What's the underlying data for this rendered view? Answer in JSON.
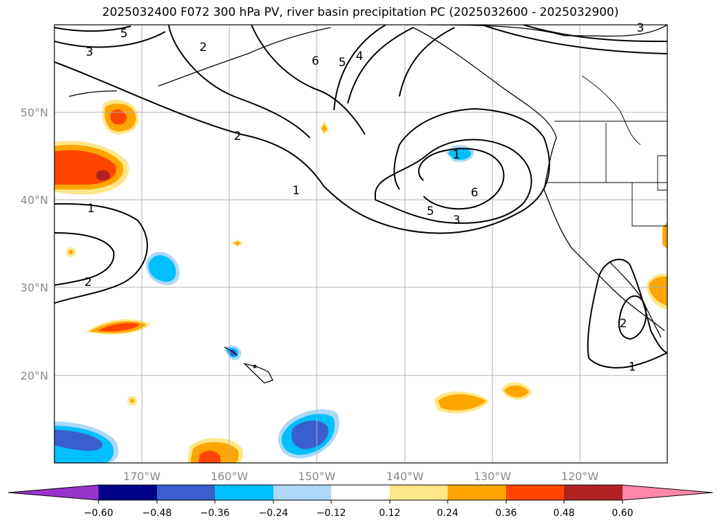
{
  "title": "2025032400 F072 300 hPa PV, river basin precipitation PC (2025032600 - 2025032900)",
  "map": {
    "lon_range": [
      -180,
      -110
    ],
    "lat_range": [
      10,
      60
    ],
    "lon_ticks": [
      {
        "value": -170,
        "label": "170°W"
      },
      {
        "value": -160,
        "label": "160°W"
      },
      {
        "value": -150,
        "label": "150°W"
      },
      {
        "value": -140,
        "label": "140°W"
      },
      {
        "value": -130,
        "label": "130°W"
      },
      {
        "value": -120,
        "label": "120°W"
      }
    ],
    "lat_ticks": [
      {
        "value": 20,
        "label": "20°N"
      },
      {
        "value": 30,
        "label": "30°N"
      },
      {
        "value": 40,
        "label": "40°N"
      },
      {
        "value": 50,
        "label": "50°N"
      }
    ],
    "gridlines": true,
    "pv_contour_labels": [
      "5",
      "2",
      "3",
      "6",
      "5",
      "4",
      "2",
      "1",
      "1",
      "2",
      "1",
      "6",
      "5",
      "3",
      "2",
      "1",
      "3"
    ]
  },
  "colorbar": {
    "ticks": [
      "−0.60",
      "−0.48",
      "−0.36",
      "−0.24",
      "−0.12",
      "0.12",
      "0.24",
      "0.36",
      "0.48",
      "0.60"
    ],
    "colors": [
      "#9933cc",
      "#00008b",
      "#3a5fcd",
      "#00bfff",
      "#add8f7",
      "#ffffff",
      "#ffe68a",
      "#ffa500",
      "#ff4500",
      "#b22222",
      "#ff88aa"
    ]
  }
}
